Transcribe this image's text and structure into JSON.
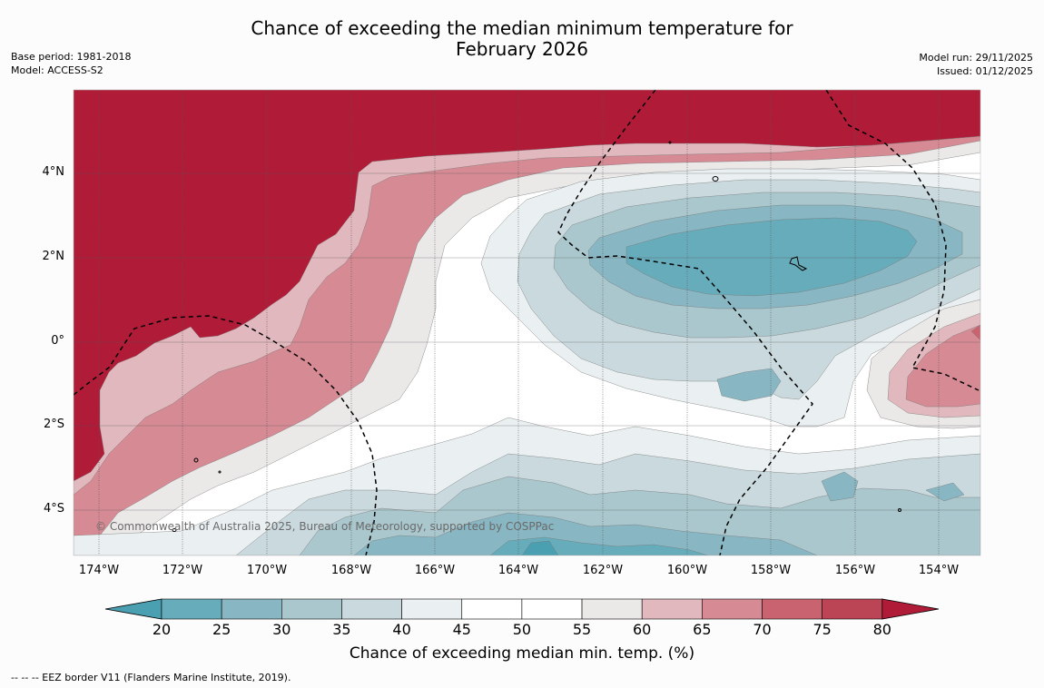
{
  "title_line1": "Chance of exceeding the median minimum temperature for",
  "title_line2": "February 2026",
  "meta_left": {
    "base_period": "Base period: 1981-2018",
    "model": "Model: ACCESS-S2"
  },
  "meta_right": {
    "model_run": "Model run: 29/11/2025",
    "issued": "Issued: 01/12/2025"
  },
  "map": {
    "lat_labels": [
      "4°N",
      "2°N",
      "0°",
      "2°S",
      "4°S"
    ],
    "lon_labels": [
      "174°W",
      "172°W",
      "170°W",
      "168°W",
      "166°W",
      "164°W",
      "162°W",
      "160°W",
      "158°W",
      "156°W",
      "154°W"
    ],
    "copyright": "© Commonwealth of Australia 2025, Bureau of Meteorology, supported by COSPPac"
  },
  "colorbar": {
    "ticks": [
      "20",
      "25",
      "30",
      "35",
      "40",
      "45",
      "50",
      "55",
      "60",
      "65",
      "70",
      "75",
      "80"
    ],
    "label": "Chance of exceeding median min. temp. (%)",
    "colors": {
      "below_20": "#4a9fb0",
      "20_25": "#67acba",
      "25_30": "#88b7c3",
      "30_35": "#a9c7cd",
      "35_40": "#c9d9dd",
      "40_45": "#eaf0f1",
      "45_50": "#ffffff",
      "50_55": "#ffffff",
      "55_60": "#ebe8e8",
      "60_65": "#e0b8bd",
      "65_70": "#d58a94",
      "70_75": "#c8636f",
      "75_80": "#bc4555",
      "above_80": "#b01c38"
    }
  },
  "footnote": "--  --  -- EEZ border V11 (Flanders Marine Institute, 2019)."
}
